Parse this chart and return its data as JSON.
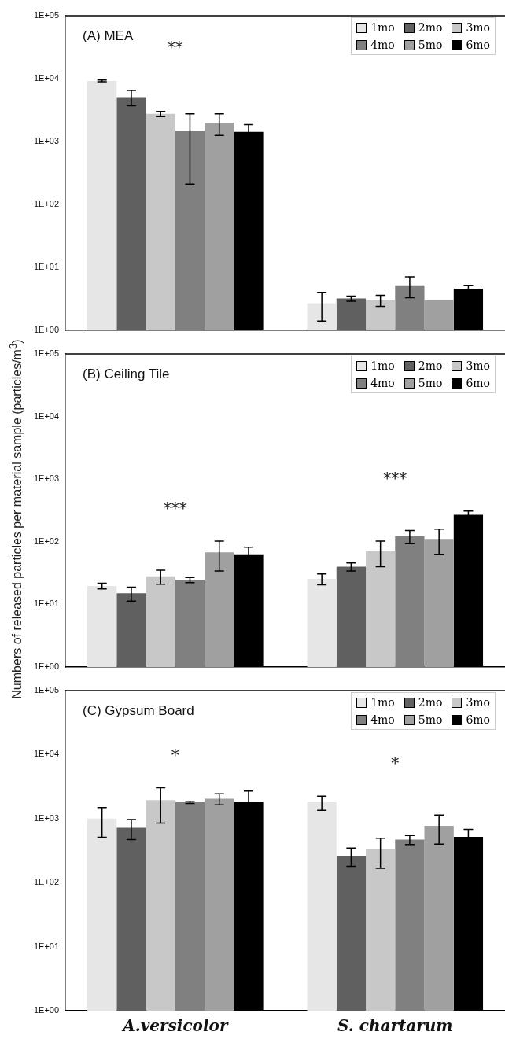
{
  "chart_data": [
    {
      "type": "bar",
      "title": "(A) MEA",
      "categories": [
        null,
        null
      ],
      "log": true,
      "ylim": [
        1,
        100000
      ],
      "yticks": [
        {
          "value": 1,
          "label": "1E+00"
        },
        {
          "value": 10,
          "label": "1E+01"
        },
        {
          "value": 100,
          "label": "1E+02"
        },
        {
          "value": 1000,
          "label": "1E+03"
        },
        {
          "value": 10000,
          "label": "1E+04"
        },
        {
          "value": 100000,
          "label": "1E+05"
        }
      ],
      "tick_labels": "y",
      "legend": "top right",
      "grid": false,
      "series": [
        {
          "name": "1mo",
          "color": "#e6e6e6",
          "values": [
            9200,
            2.7
          ],
          "errors": [
            300,
            1.3
          ]
        },
        {
          "name": "2mo",
          "color": "#606060",
          "values": [
            5100,
            3.2
          ],
          "errors": [
            1400,
            0.3
          ]
        },
        {
          "name": "3mo",
          "color": "#c8c8c8",
          "values": [
            2750,
            3.0
          ],
          "errors": [
            250,
            0.6
          ]
        },
        {
          "name": "4mo",
          "color": "#808080",
          "values": [
            1480,
            5.2
          ],
          "errors": [
            1270,
            1.9
          ]
        },
        {
          "name": "5mo",
          "color": "#a0a0a0",
          "values": [
            2000,
            3.0
          ],
          "errors": [
            750,
            null
          ]
        },
        {
          "name": "6mo",
          "color": "#000000",
          "values": [
            1420,
            4.6
          ],
          "errors": [
            440,
            0.6
          ]
        }
      ],
      "annotations": [
        "**"
      ]
    },
    {
      "type": "bar",
      "title": "(B) Ceiling Tile",
      "ylabel": "Numbers of released particles per material sample (particles/m$^{3}$)",
      "categories": [
        null,
        null
      ],
      "log": true,
      "ylim": [
        1,
        100000
      ],
      "yticks": [
        {
          "value": 1,
          "label": "1E+00"
        },
        {
          "value": 10,
          "label": "1E+01"
        },
        {
          "value": 100,
          "label": "1E+02"
        },
        {
          "value": 1000,
          "label": "1E+03"
        },
        {
          "value": 10000,
          "label": "1E+04"
        },
        {
          "value": 100000,
          "label": "1E+05"
        }
      ],
      "tick_labels": "y",
      "legend": "top right",
      "grid": false,
      "series": [
        {
          "name": "1mo",
          "color": "#e6e6e6",
          "values": [
            19.7,
            25.6
          ],
          "errors": [
            2,
            5
          ]
        },
        {
          "name": "2mo",
          "color": "#606060",
          "values": [
            15.1,
            40
          ],
          "errors": [
            3.8,
            6
          ]
        },
        {
          "name": "3mo",
          "color": "#c8c8c8",
          "values": [
            28,
            71
          ],
          "errors": [
            7,
            31
          ]
        },
        {
          "name": "4mo",
          "color": "#808080",
          "values": [
            24.6,
            122
          ],
          "errors": [
            2.3,
            29
          ]
        },
        {
          "name": "5mo",
          "color": "#a0a0a0",
          "values": [
            68,
            111
          ],
          "errors": [
            34,
            48
          ]
        },
        {
          "name": "6mo",
          "color": "#000000",
          "values": [
            63,
            269
          ],
          "errors": [
            19,
            40
          ]
        }
      ],
      "annotations": [
        "***",
        "***"
      ]
    },
    {
      "type": "bar",
      "title": "(C) Gypsum Board",
      "categories": [
        "A.versicolor",
        "S. chartarum"
      ],
      "log": true,
      "ylim": [
        1,
        100000
      ],
      "yticks": [
        {
          "value": 1,
          "label": "1E+00"
        },
        {
          "value": 10,
          "label": "1E+01"
        },
        {
          "value": 100,
          "label": "1E+02"
        },
        {
          "value": 1000,
          "label": "1E+03"
        },
        {
          "value": 10000,
          "label": "1E+04"
        },
        {
          "value": 100000,
          "label": "1E+05"
        }
      ],
      "legend": "top right",
      "grid": false,
      "series": [
        {
          "name": "1mo",
          "color": "#e6e6e6",
          "values": [
            1000,
            1800
          ],
          "errors": [
            490,
            450
          ]
        },
        {
          "name": "2mo",
          "color": "#606060",
          "values": [
            720,
            263
          ],
          "errors": [
            250,
            83
          ]
        },
        {
          "name": "3mo",
          "color": "#c8c8c8",
          "values": [
            1950,
            330
          ],
          "errors": [
            1100,
            163
          ]
        },
        {
          "name": "4mo",
          "color": "#808080",
          "values": [
            1800,
            470
          ],
          "errors": [
            70,
            75
          ]
        },
        {
          "name": "5mo",
          "color": "#a0a0a0",
          "values": [
            2040,
            770
          ],
          "errors": [
            400,
            370
          ]
        },
        {
          "name": "6mo",
          "color": "#000000",
          "values": [
            1800,
            520
          ],
          "errors": [
            890,
            157
          ]
        }
      ],
      "annotations": [
        "*",
        "*"
      ]
    }
  ]
}
